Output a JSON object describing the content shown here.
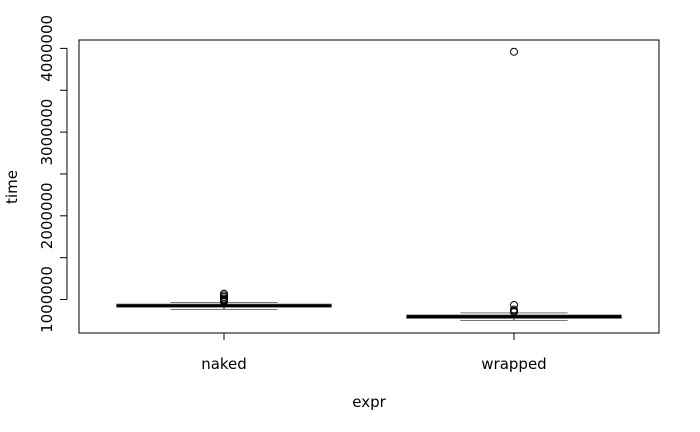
{
  "chart_data": {
    "type": "boxplot",
    "xlabel": "expr",
    "ylabel": "time",
    "ylim": [
      600000,
      4100000
    ],
    "y_ticks": [
      1000000,
      1500000,
      2000000,
      2500000,
      3000000,
      3500000,
      4000000
    ],
    "y_tick_labels": [
      "1000000",
      "",
      "2000000",
      "",
      "3000000",
      "",
      "4000000"
    ],
    "grid": false,
    "categories": [
      "naked",
      "wrapped"
    ],
    "boxes": [
      {
        "name": "naked",
        "lower_whisker": 880000,
        "q1": 910000,
        "median": 925000,
        "q3": 945000,
        "upper_whisker": 965000,
        "outliers": [
          975000,
          985000,
          995000,
          1010000,
          1030000,
          1050000,
          1070000
        ]
      },
      {
        "name": "wrapped",
        "lower_whisker": 750000,
        "q1": 775000,
        "median": 795000,
        "q3": 815000,
        "upper_whisker": 840000,
        "outliers": [
          850000,
          865000,
          880000,
          935000,
          3960000
        ]
      }
    ]
  }
}
